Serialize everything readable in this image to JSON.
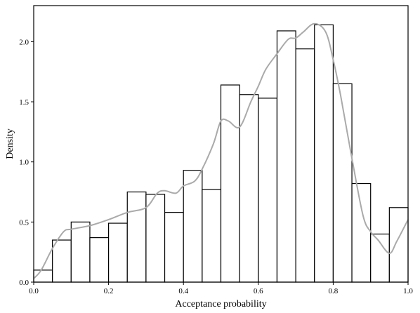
{
  "chart_data": {
    "type": "bar",
    "title": "",
    "xlabel": "Acceptance probability",
    "ylabel": "Density",
    "xlim": [
      0.0,
      1.0
    ],
    "ylim": [
      0.0,
      2.3
    ],
    "xticks": [
      "0.0",
      "0.2",
      "0.4",
      "0.6",
      "0.8",
      "1.0"
    ],
    "yticks": [
      "0.0",
      "0.5",
      "1.0",
      "1.5",
      "2.0"
    ],
    "grid": false,
    "bin_edges": [
      0.0,
      0.05,
      0.1,
      0.15,
      0.2,
      0.25,
      0.3,
      0.35,
      0.4,
      0.45,
      0.5,
      0.55,
      0.6,
      0.65,
      0.7,
      0.75,
      0.8,
      0.85,
      0.9,
      0.95,
      1.0
    ],
    "values": [
      0.1,
      0.35,
      0.5,
      0.37,
      0.49,
      0.75,
      0.73,
      0.58,
      0.93,
      0.77,
      1.64,
      1.56,
      1.53,
      2.09,
      1.94,
      2.14,
      1.65,
      0.82,
      0.4,
      0.62
    ],
    "bar_fill": "#ffffff",
    "bar_edge": "#000000",
    "kde": {
      "color": "#aaaaaa",
      "x": [
        0.0,
        0.02,
        0.05,
        0.08,
        0.1,
        0.15,
        0.2,
        0.25,
        0.3,
        0.33,
        0.35,
        0.38,
        0.4,
        0.43,
        0.45,
        0.48,
        0.5,
        0.52,
        0.55,
        0.58,
        0.6,
        0.62,
        0.65,
        0.68,
        0.7,
        0.72,
        0.75,
        0.78,
        0.8,
        0.82,
        0.85,
        0.88,
        0.9,
        0.92,
        0.95,
        0.97,
        1.0
      ],
      "y": [
        0.03,
        0.1,
        0.28,
        0.42,
        0.44,
        0.47,
        0.52,
        0.58,
        0.62,
        0.74,
        0.76,
        0.74,
        0.8,
        0.84,
        0.94,
        1.15,
        1.34,
        1.34,
        1.29,
        1.5,
        1.63,
        1.77,
        1.9,
        2.02,
        2.03,
        2.08,
        2.15,
        2.08,
        1.85,
        1.55,
        1.03,
        0.55,
        0.42,
        0.35,
        0.24,
        0.34,
        0.52
      ]
    }
  }
}
